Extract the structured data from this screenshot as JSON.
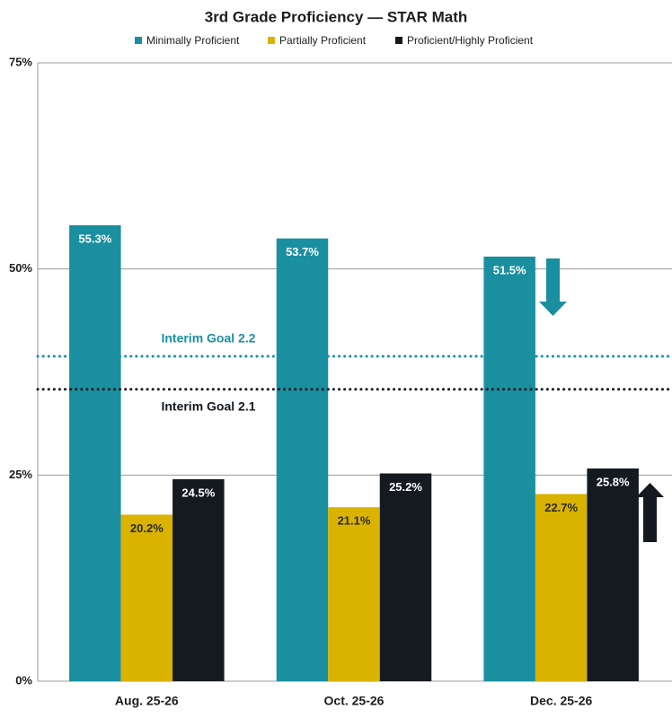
{
  "chart_data": {
    "type": "bar",
    "title": "3rd Grade Proficiency — STAR Math",
    "categories": [
      "Aug. 25-26",
      "Oct. 25-26",
      "Dec. 25-26"
    ],
    "series": [
      {
        "name": "Minimally Proficient",
        "color": "#1a8fa0",
        "values": [
          55.3,
          53.7,
          51.5
        ],
        "value_labels": [
          "55.3%",
          "53.7%",
          "51.5%"
        ]
      },
      {
        "name": "Partially Proficient",
        "color": "#d9b300",
        "values": [
          20.2,
          21.1,
          22.7
        ],
        "value_labels": [
          "20.2%",
          "21.1%",
          "22.7%"
        ]
      },
      {
        "name": "Proficient/Highly Proficient",
        "color": "#141a20",
        "values": [
          24.5,
          25.2,
          25.8
        ],
        "value_labels": [
          "24.5%",
          "25.2%",
          "25.8%"
        ]
      }
    ],
    "ylim": [
      0,
      75
    ],
    "yticks": [
      {
        "value": 0,
        "label": "0%"
      },
      {
        "value": 25,
        "label": "25%"
      },
      {
        "value": 50,
        "label": "50%"
      },
      {
        "value": 75,
        "label": "75%"
      }
    ],
    "grid": true,
    "reference_lines": [
      {
        "label": "Interim Goal 2.2",
        "value": 39.4,
        "color": "#1a8fa0"
      },
      {
        "label": "Interim Goal 2.1",
        "value": 35.4,
        "color": "#141a20"
      }
    ]
  }
}
